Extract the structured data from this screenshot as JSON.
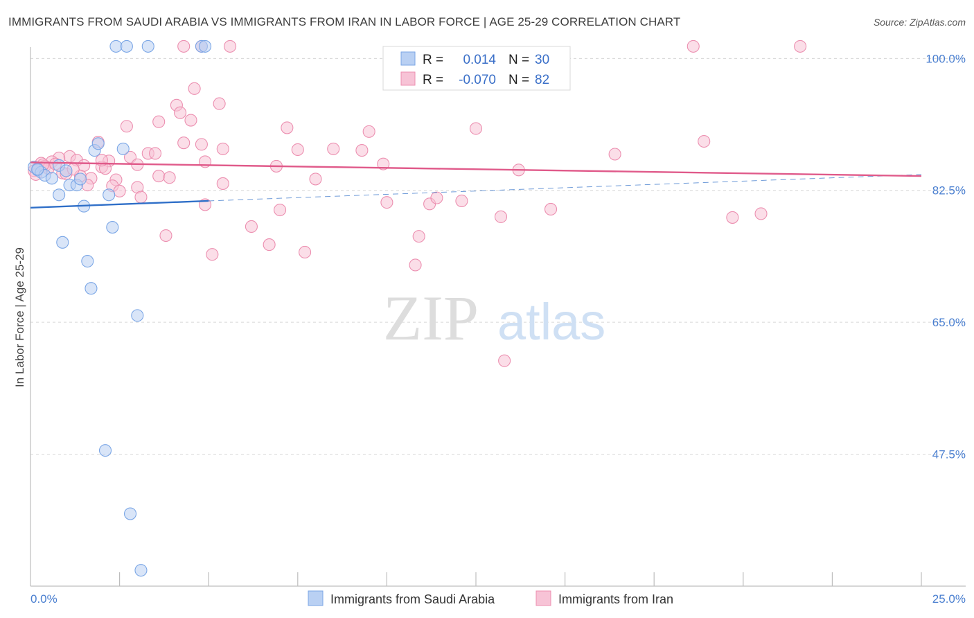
{
  "chart_data": {
    "type": "scatter",
    "title": "IMMIGRANTS FROM SAUDI ARABIA VS IMMIGRANTS FROM IRAN IN LABOR FORCE | AGE 25-29 CORRELATION CHART",
    "source": "Source: ZipAtlas.com",
    "ylabel": "In Labor Force | Age 25-29",
    "xlim": [
      0,
      25
    ],
    "ylim": [
      30,
      101.5
    ],
    "x_tick_labels": [
      {
        "value": 0,
        "label": "0.0%"
      },
      {
        "value": 25,
        "label": "25.0%"
      }
    ],
    "y_tick_labels": [
      {
        "value": 100,
        "label": "100.0%"
      },
      {
        "value": 82.5,
        "label": "82.5%"
      },
      {
        "value": 65,
        "label": "65.0%"
      },
      {
        "value": 47.5,
        "label": "47.5%"
      }
    ],
    "watermark": {
      "part1": "ZIP",
      "part2": "atlas"
    },
    "stats": {
      "r_label": "R =",
      "n_label": "N =",
      "rows": [
        {
          "r": "0.014",
          "n": "30"
        },
        {
          "r": "-0.070",
          "n": "82"
        }
      ]
    },
    "series": [
      {
        "name": "Immigrants from Saudi Arabia",
        "color": "#7aa6e6",
        "fill": "#b9d0f3",
        "line_color": "#2f6fc8",
        "trend": {
          "x0": 0,
          "y0": 80.2,
          "x1": 5,
          "y1": 81.1,
          "dash_x1": 25,
          "dash_y1": 84.6
        },
        "points": [
          [
            2.4,
            101.6
          ],
          [
            2.7,
            101.6
          ],
          [
            3.3,
            101.6
          ],
          [
            4.8,
            101.6
          ],
          [
            4.9,
            101.6
          ],
          [
            0.1,
            85.6
          ],
          [
            0.2,
            85.2
          ],
          [
            0.3,
            84.9
          ],
          [
            0.4,
            84.5
          ],
          [
            0.6,
            84.1
          ],
          [
            0.8,
            85.8
          ],
          [
            1.0,
            85.1
          ],
          [
            1.1,
            83.2
          ],
          [
            1.3,
            83.2
          ],
          [
            1.4,
            84.0
          ],
          [
            1.8,
            87.8
          ],
          [
            1.9,
            88.7
          ],
          [
            2.6,
            88.0
          ],
          [
            0.8,
            81.9
          ],
          [
            1.5,
            80.4
          ],
          [
            2.2,
            81.9
          ],
          [
            2.3,
            77.6
          ],
          [
            0.9,
            75.6
          ],
          [
            1.6,
            73.1
          ],
          [
            1.7,
            69.5
          ],
          [
            3.0,
            65.9
          ],
          [
            2.1,
            48.0
          ],
          [
            2.8,
            39.6
          ],
          [
            3.1,
            32.1
          ],
          [
            0.2,
            85.3
          ]
        ]
      },
      {
        "name": "Immigrants from Iran",
        "color": "#ec8fb0",
        "fill": "#f7c3d6",
        "line_color": "#e05a8a",
        "trend": {
          "x0": 0,
          "y0": 86.2,
          "x1": 25,
          "y1": 84.4
        },
        "points": [
          [
            4.3,
            101.6
          ],
          [
            4.8,
            101.6
          ],
          [
            5.6,
            101.6
          ],
          [
            18.6,
            101.6
          ],
          [
            21.6,
            101.6
          ],
          [
            4.6,
            96.0
          ],
          [
            5.3,
            94.0
          ],
          [
            4.1,
            93.8
          ],
          [
            4.2,
            92.8
          ],
          [
            3.6,
            91.6
          ],
          [
            4.5,
            91.8
          ],
          [
            2.7,
            91.0
          ],
          [
            7.2,
            90.8
          ],
          [
            9.5,
            90.3
          ],
          [
            12.5,
            90.7
          ],
          [
            1.9,
            88.9
          ],
          [
            4.3,
            88.8
          ],
          [
            4.8,
            88.6
          ],
          [
            5.4,
            88.0
          ],
          [
            7.5,
            87.9
          ],
          [
            8.5,
            88.0
          ],
          [
            9.3,
            87.8
          ],
          [
            3.3,
            87.4
          ],
          [
            3.5,
            87.4
          ],
          [
            2.8,
            86.9
          ],
          [
            1.1,
            87.0
          ],
          [
            1.3,
            86.5
          ],
          [
            0.8,
            86.8
          ],
          [
            0.6,
            86.3
          ],
          [
            0.3,
            86.1
          ],
          [
            0.4,
            85.7
          ],
          [
            0.2,
            85.4
          ],
          [
            1.5,
            85.8
          ],
          [
            2.2,
            86.4
          ],
          [
            2.0,
            85.6
          ],
          [
            2.1,
            85.4
          ],
          [
            3.0,
            85.9
          ],
          [
            4.9,
            86.3
          ],
          [
            6.9,
            85.7
          ],
          [
            9.9,
            86.0
          ],
          [
            13.7,
            85.2
          ],
          [
            16.4,
            87.3
          ],
          [
            18.9,
            89.0
          ],
          [
            0.9,
            84.8
          ],
          [
            1.4,
            84.4
          ],
          [
            1.7,
            84.1
          ],
          [
            2.4,
            83.9
          ],
          [
            3.6,
            84.4
          ],
          [
            0.5,
            85.4
          ],
          [
            1.0,
            84.7
          ],
          [
            1.6,
            83.2
          ],
          [
            2.3,
            83.1
          ],
          [
            2.5,
            82.4
          ],
          [
            3.0,
            82.9
          ],
          [
            3.1,
            81.6
          ],
          [
            5.4,
            83.4
          ],
          [
            8.0,
            84.0
          ],
          [
            4.9,
            80.6
          ],
          [
            7.0,
            79.9
          ],
          [
            10.0,
            80.9
          ],
          [
            11.2,
            80.7
          ],
          [
            11.4,
            81.5
          ],
          [
            12.1,
            81.1
          ],
          [
            14.6,
            80.0
          ],
          [
            13.2,
            79.0
          ],
          [
            19.7,
            78.9
          ],
          [
            20.5,
            79.4
          ],
          [
            6.2,
            77.7
          ],
          [
            3.8,
            76.5
          ],
          [
            6.7,
            75.3
          ],
          [
            7.7,
            74.3
          ],
          [
            10.9,
            76.4
          ],
          [
            10.8,
            72.6
          ],
          [
            5.1,
            74.0
          ],
          [
            13.3,
            59.9
          ],
          [
            0.1,
            85.1
          ],
          [
            0.15,
            84.6
          ],
          [
            0.35,
            85.9
          ],
          [
            0.7,
            86.0
          ],
          [
            1.2,
            85.3
          ],
          [
            2.0,
            86.5
          ],
          [
            3.9,
            84.2
          ]
        ]
      }
    ]
  }
}
